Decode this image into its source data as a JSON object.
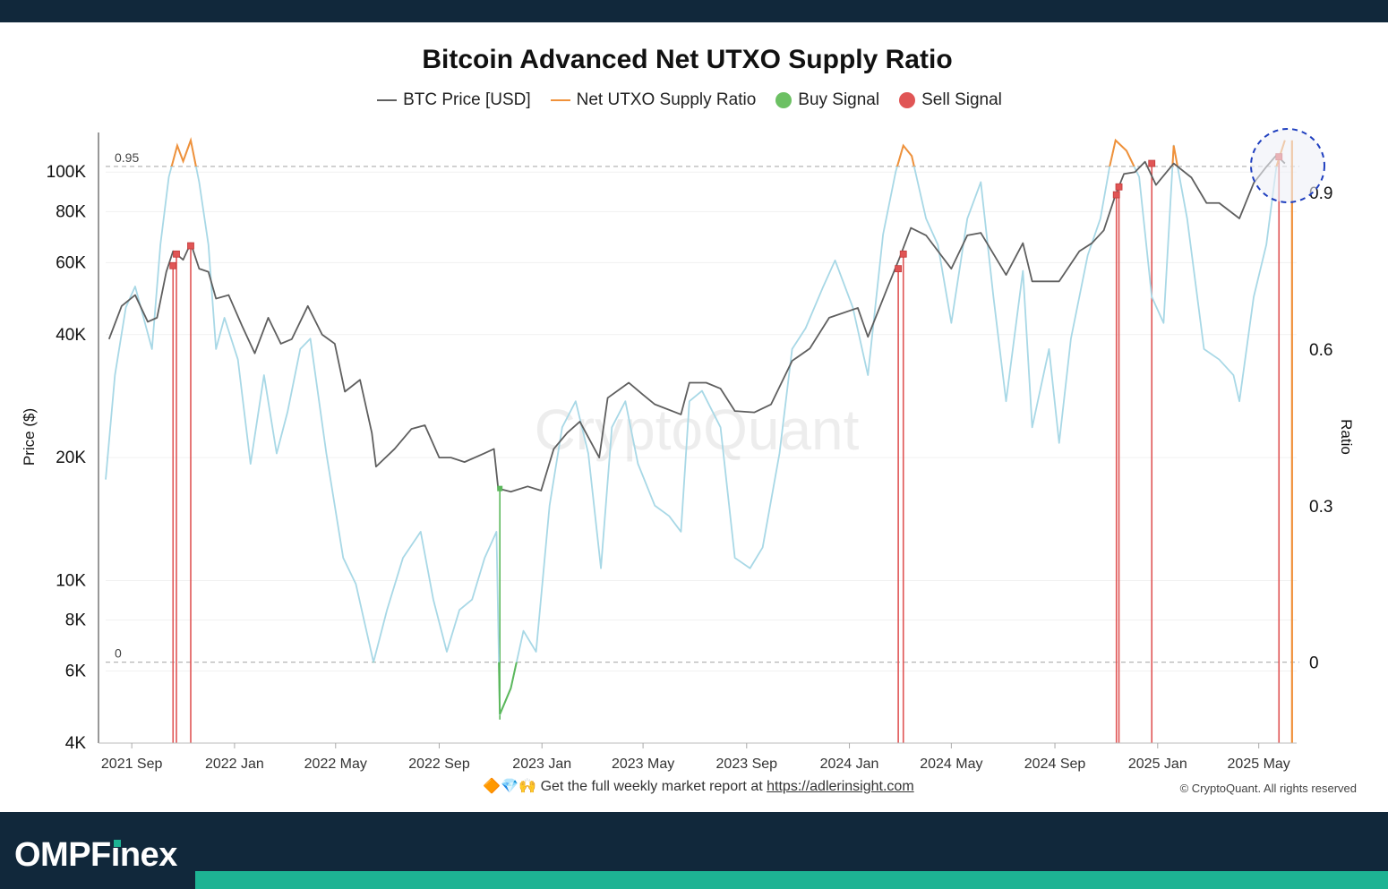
{
  "chart_data": {
    "type": "line",
    "title": "Bitcoin Advanced Net UTXO Supply Ratio",
    "ylabel": "Price ($)",
    "y2label": "Ratio",
    "watermark": "CryptoQuant",
    "yscale": "log",
    "ylim": [
      4000,
      125000
    ],
    "y2lim": [
      -0.155,
      1.015
    ],
    "xlim": [
      "2021-08-01",
      "2025-06-15"
    ],
    "x_ticks": [
      {
        "label": "2021 Sep",
        "date": "2021-09-01"
      },
      {
        "label": "2022 Jan",
        "date": "2022-01-01"
      },
      {
        "label": "2022 May",
        "date": "2022-05-01"
      },
      {
        "label": "2022 Sep",
        "date": "2022-09-01"
      },
      {
        "label": "2023 Jan",
        "date": "2023-01-01"
      },
      {
        "label": "2023 May",
        "date": "2023-05-01"
      },
      {
        "label": "2023 Sep",
        "date": "2023-09-01"
      },
      {
        "label": "2024 Jan",
        "date": "2024-01-01"
      },
      {
        "label": "2024 May",
        "date": "2024-05-01"
      },
      {
        "label": "2024 Sep",
        "date": "2024-09-01"
      },
      {
        "label": "2025 Jan",
        "date": "2025-01-01"
      },
      {
        "label": "2025 May",
        "date": "2025-05-01"
      }
    ],
    "y_ticks": [
      {
        "label": "100K",
        "value": 100000
      },
      {
        "label": "80K",
        "value": 80000
      },
      {
        "label": "60K",
        "value": 60000
      },
      {
        "label": "40K",
        "value": 40000
      },
      {
        "label": "20K",
        "value": 20000
      },
      {
        "label": "10K",
        "value": 10000
      },
      {
        "label": "8K",
        "value": 8000
      },
      {
        "label": "6K",
        "value": 6000
      },
      {
        "label": "4K",
        "value": 4000
      }
    ],
    "y2_ticks": [
      {
        "label": "0.9",
        "value": 0.9
      },
      {
        "label": "0.6",
        "value": 0.6
      },
      {
        "label": "0.3",
        "value": 0.3
      },
      {
        "label": "0",
        "value": 0
      }
    ],
    "thresholds": [
      {
        "label": "0.95",
        "value": 0.95
      },
      {
        "label": "0",
        "value": 0
      }
    ],
    "grid": true,
    "legend": "top-center",
    "colors": {
      "price": "#5f5f5f",
      "ratio": "#f0913a",
      "ratio_light": "#a8d8e6",
      "buy": "#5cb85c",
      "sell": "#e05555",
      "highlight": "#1f3fbf"
    },
    "series": [
      {
        "name": "BTC Price [USD]",
        "axis": "left",
        "points": [
          [
            "2021-08-05",
            39000
          ],
          [
            "2021-08-20",
            47000
          ],
          [
            "2021-09-05",
            50000
          ],
          [
            "2021-09-20",
            43000
          ],
          [
            "2021-10-01",
            44000
          ],
          [
            "2021-10-12",
            57000
          ],
          [
            "2021-10-20",
            64000
          ],
          [
            "2021-11-01",
            61000
          ],
          [
            "2021-11-10",
            67000
          ],
          [
            "2021-11-20",
            58000
          ],
          [
            "2021-12-01",
            57000
          ],
          [
            "2021-12-10",
            49000
          ],
          [
            "2021-12-25",
            50000
          ],
          [
            "2022-01-10",
            42000
          ],
          [
            "2022-01-25",
            36000
          ],
          [
            "2022-02-10",
            44000
          ],
          [
            "2022-02-25",
            38000
          ],
          [
            "2022-03-10",
            39000
          ],
          [
            "2022-03-29",
            47000
          ],
          [
            "2022-04-15",
            40000
          ],
          [
            "2022-04-30",
            38000
          ],
          [
            "2022-05-12",
            29000
          ],
          [
            "2022-05-30",
            31000
          ],
          [
            "2022-06-13",
            23000
          ],
          [
            "2022-06-18",
            19000
          ],
          [
            "2022-07-10",
            21000
          ],
          [
            "2022-07-30",
            23500
          ],
          [
            "2022-08-15",
            24000
          ],
          [
            "2022-09-01",
            20000
          ],
          [
            "2022-09-15",
            20000
          ],
          [
            "2022-10-01",
            19500
          ],
          [
            "2022-10-25",
            20500
          ],
          [
            "2022-11-05",
            21000
          ],
          [
            "2022-11-10",
            16800
          ],
          [
            "2022-11-25",
            16500
          ],
          [
            "2022-12-15",
            17000
          ],
          [
            "2022-12-31",
            16600
          ],
          [
            "2023-01-15",
            21000
          ],
          [
            "2023-01-31",
            23000
          ],
          [
            "2023-02-15",
            24500
          ],
          [
            "2023-03-10",
            20000
          ],
          [
            "2023-03-20",
            28000
          ],
          [
            "2023-04-14",
            30500
          ],
          [
            "2023-05-01",
            28500
          ],
          [
            "2023-05-15",
            27000
          ],
          [
            "2023-06-15",
            25500
          ],
          [
            "2023-06-25",
            30500
          ],
          [
            "2023-07-15",
            30500
          ],
          [
            "2023-08-01",
            29500
          ],
          [
            "2023-08-18",
            26000
          ],
          [
            "2023-09-10",
            25800
          ],
          [
            "2023-09-30",
            27000
          ],
          [
            "2023-10-25",
            34500
          ],
          [
            "2023-11-15",
            37000
          ],
          [
            "2023-12-08",
            44000
          ],
          [
            "2024-01-11",
            46500
          ],
          [
            "2024-01-23",
            39500
          ],
          [
            "2024-02-15",
            52000
          ],
          [
            "2024-03-01",
            62000
          ],
          [
            "2024-03-14",
            73000
          ],
          [
            "2024-04-01",
            70000
          ],
          [
            "2024-05-01",
            58000
          ],
          [
            "2024-05-20",
            70000
          ],
          [
            "2024-06-05",
            71000
          ],
          [
            "2024-07-05",
            56000
          ],
          [
            "2024-07-25",
            67000
          ],
          [
            "2024-08-05",
            54000
          ],
          [
            "2024-09-06",
            54000
          ],
          [
            "2024-09-30",
            64000
          ],
          [
            "2024-10-15",
            67000
          ],
          [
            "2024-10-29",
            72000
          ],
          [
            "2024-11-12",
            88000
          ],
          [
            "2024-11-22",
            99000
          ],
          [
            "2024-12-05",
            100000
          ],
          [
            "2024-12-17",
            106000
          ],
          [
            "2024-12-30",
            93000
          ],
          [
            "2025-01-20",
            105000
          ],
          [
            "2025-02-10",
            97000
          ],
          [
            "2025-02-28",
            84000
          ],
          [
            "2025-03-15",
            84000
          ],
          [
            "2025-04-08",
            77000
          ],
          [
            "2025-04-25",
            94000
          ],
          [
            "2025-05-10",
            103000
          ],
          [
            "2025-05-22",
            110000
          ],
          [
            "2025-06-01",
            105000
          ]
        ]
      },
      {
        "name": "Net UTXO Supply Ratio",
        "axis": "right",
        "points": [
          [
            "2021-08-01",
            0.35
          ],
          [
            "2021-08-12",
            0.55
          ],
          [
            "2021-08-25",
            0.68
          ],
          [
            "2021-09-05",
            0.72
          ],
          [
            "2021-09-15",
            0.66
          ],
          [
            "2021-09-25",
            0.6
          ],
          [
            "2021-10-05",
            0.8
          ],
          [
            "2021-10-15",
            0.93
          ],
          [
            "2021-10-25",
            0.99
          ],
          [
            "2021-11-01",
            0.96
          ],
          [
            "2021-11-10",
            1.0
          ],
          [
            "2021-11-20",
            0.92
          ],
          [
            "2021-12-01",
            0.8
          ],
          [
            "2021-12-10",
            0.6
          ],
          [
            "2021-12-20",
            0.66
          ],
          [
            "2022-01-05",
            0.58
          ],
          [
            "2022-01-20",
            0.38
          ],
          [
            "2022-02-05",
            0.55
          ],
          [
            "2022-02-20",
            0.4
          ],
          [
            "2022-03-05",
            0.48
          ],
          [
            "2022-03-20",
            0.6
          ],
          [
            "2022-04-01",
            0.62
          ],
          [
            "2022-04-20",
            0.4
          ],
          [
            "2022-05-10",
            0.2
          ],
          [
            "2022-05-25",
            0.15
          ],
          [
            "2022-06-15",
            0.0
          ],
          [
            "2022-07-01",
            0.1
          ],
          [
            "2022-07-20",
            0.2
          ],
          [
            "2022-08-10",
            0.25
          ],
          [
            "2022-08-25",
            0.12
          ],
          [
            "2022-09-10",
            0.02
          ],
          [
            "2022-09-25",
            0.1
          ],
          [
            "2022-10-10",
            0.12
          ],
          [
            "2022-10-25",
            0.2
          ],
          [
            "2022-11-08",
            0.25
          ],
          [
            "2022-11-12",
            -0.1
          ],
          [
            "2022-11-25",
            -0.05
          ],
          [
            "2022-12-10",
            0.06
          ],
          [
            "2022-12-25",
            0.02
          ],
          [
            "2023-01-10",
            0.3
          ],
          [
            "2023-01-25",
            0.45
          ],
          [
            "2023-02-10",
            0.5
          ],
          [
            "2023-02-25",
            0.4
          ],
          [
            "2023-03-12",
            0.18
          ],
          [
            "2023-03-25",
            0.45
          ],
          [
            "2023-04-10",
            0.5
          ],
          [
            "2023-04-25",
            0.38
          ],
          [
            "2023-05-15",
            0.3
          ],
          [
            "2023-06-01",
            0.28
          ],
          [
            "2023-06-15",
            0.25
          ],
          [
            "2023-06-25",
            0.5
          ],
          [
            "2023-07-10",
            0.52
          ],
          [
            "2023-08-01",
            0.45
          ],
          [
            "2023-08-18",
            0.2
          ],
          [
            "2023-09-05",
            0.18
          ],
          [
            "2023-09-20",
            0.22
          ],
          [
            "2023-10-10",
            0.4
          ],
          [
            "2023-10-25",
            0.6
          ],
          [
            "2023-11-10",
            0.64
          ],
          [
            "2023-12-01",
            0.72
          ],
          [
            "2023-12-15",
            0.77
          ],
          [
            "2024-01-05",
            0.68
          ],
          [
            "2024-01-23",
            0.55
          ],
          [
            "2024-02-10",
            0.82
          ],
          [
            "2024-02-25",
            0.94
          ],
          [
            "2024-03-05",
            0.99
          ],
          [
            "2024-03-15",
            0.97
          ],
          [
            "2024-04-01",
            0.85
          ],
          [
            "2024-04-15",
            0.8
          ],
          [
            "2024-05-01",
            0.65
          ],
          [
            "2024-05-20",
            0.85
          ],
          [
            "2024-06-05",
            0.92
          ],
          [
            "2024-06-20",
            0.7
          ],
          [
            "2024-07-05",
            0.5
          ],
          [
            "2024-07-25",
            0.75
          ],
          [
            "2024-08-05",
            0.45
          ],
          [
            "2024-08-25",
            0.6
          ],
          [
            "2024-09-06",
            0.42
          ],
          [
            "2024-09-20",
            0.62
          ],
          [
            "2024-10-10",
            0.78
          ],
          [
            "2024-10-25",
            0.85
          ],
          [
            "2024-11-05",
            0.95
          ],
          [
            "2024-11-12",
            1.0
          ],
          [
            "2024-11-25",
            0.98
          ],
          [
            "2024-12-10",
            0.93
          ],
          [
            "2024-12-25",
            0.7
          ],
          [
            "2025-01-08",
            0.65
          ],
          [
            "2025-01-20",
            0.99
          ],
          [
            "2025-02-05",
            0.85
          ],
          [
            "2025-02-25",
            0.6
          ],
          [
            "2025-03-15",
            0.58
          ],
          [
            "2025-04-01",
            0.55
          ],
          [
            "2025-04-08",
            0.5
          ],
          [
            "2025-04-25",
            0.7
          ],
          [
            "2025-05-10",
            0.8
          ],
          [
            "2025-05-22",
            0.95
          ],
          [
            "2025-06-01",
            1.0
          ]
        ]
      }
    ],
    "signals": {
      "buy": [
        {
          "date": "2022-11-12",
          "price": 16800
        }
      ],
      "sell": [
        {
          "date": "2021-10-20",
          "price": 59000
        },
        {
          "date": "2021-10-24",
          "price": 63000
        },
        {
          "date": "2021-11-10",
          "price": 66000
        },
        {
          "date": "2024-02-28",
          "price": 58000
        },
        {
          "date": "2024-03-05",
          "price": 63000
        },
        {
          "date": "2024-11-13",
          "price": 88000
        },
        {
          "date": "2024-11-16",
          "price": 92000
        },
        {
          "date": "2024-12-25",
          "price": 105000
        },
        {
          "date": "2025-05-25",
          "price": 109000
        }
      ]
    }
  },
  "legend": {
    "price_label": "BTC Price [USD]",
    "ratio_label": "Net UTXO Supply Ratio",
    "buy_label": "Buy Signal",
    "sell_label": "Sell Signal"
  },
  "footer": {
    "note_emojis": "🔶💎🙌",
    "note_text": "Get the full weekly market report at",
    "link_text": "https://adlerinsight.com",
    "copyright": "© CryptoQuant. All rights reserved"
  },
  "brand": {
    "name_part1": "OMPF",
    "name_i": "ı",
    "name_part2": "nex",
    "colors": {
      "dark": "#11283b",
      "accent": "#1db393"
    }
  }
}
